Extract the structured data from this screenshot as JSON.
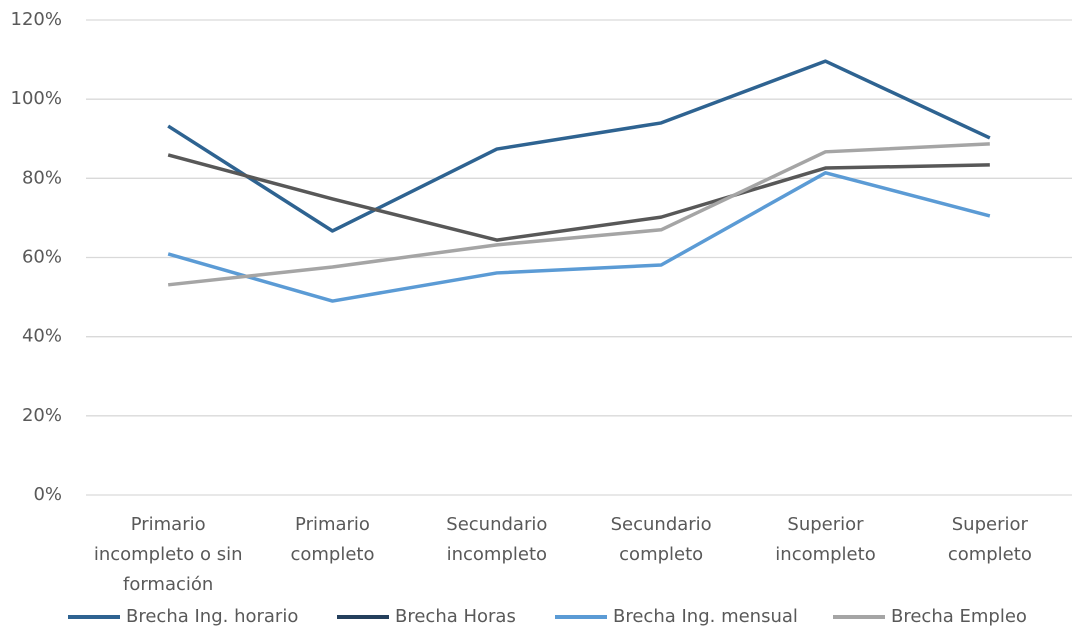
{
  "chart_data": {
    "type": "line",
    "categories": [
      "Primario incompleto o sin formación",
      "Primario completo",
      "Secundario incompleto",
      "Secundario completo",
      "Superior incompleto",
      "Superior completo"
    ],
    "series": [
      {
        "name": "Brecha Ing. horario",
        "color": "#2e6391",
        "values": [
          93.2,
          66.7,
          87.4,
          94.0,
          109.6,
          90.2
        ]
      },
      {
        "name": "Brecha Horas",
        "color": "#585858",
        "legend_color": "#243f5c",
        "values": [
          85.9,
          74.8,
          64.4,
          70.2,
          82.6,
          83.4
        ]
      },
      {
        "name": "Brecha Ing. mensual",
        "color": "#5b9bd5",
        "values": [
          60.9,
          49.0,
          56.1,
          58.1,
          81.4,
          70.5
        ]
      },
      {
        "name": "Brecha Empleo",
        "color": "#a5a5a5",
        "values": [
          53.1,
          57.6,
          63.2,
          67.0,
          86.7,
          88.7
        ]
      }
    ],
    "ylim": [
      0,
      120
    ],
    "yticks": [
      {
        "value": 0,
        "label": "0%"
      },
      {
        "value": 20,
        "label": "20%"
      },
      {
        "value": 40,
        "label": "40%"
      },
      {
        "value": 60,
        "label": "60%"
      },
      {
        "value": 80,
        "label": "80%"
      },
      {
        "value": 100,
        "label": "100%"
      },
      {
        "value": 120,
        "label": "120%"
      }
    ],
    "grid": true,
    "legend": "bottom"
  }
}
